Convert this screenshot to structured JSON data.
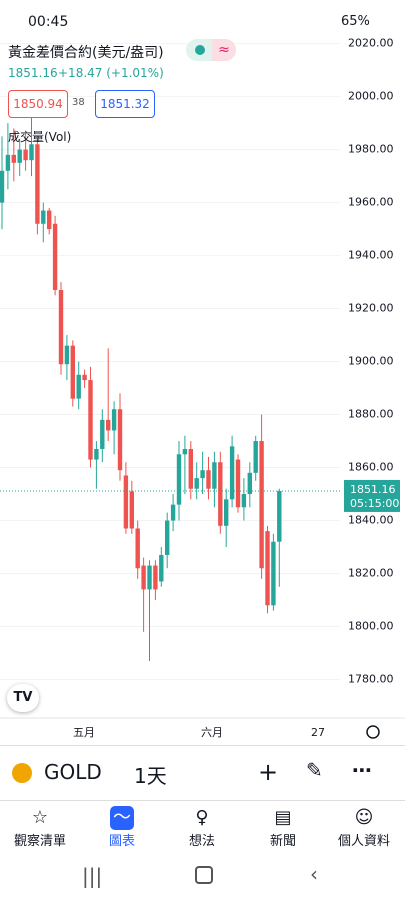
{
  "status": {
    "time": "00:45",
    "battery": "65%"
  },
  "header": {
    "title": "黃金差價合約(美元/盎司)",
    "last": "1851.16",
    "change": "+18.47 (+1.01%)",
    "bid": "1850.94",
    "spread": "38",
    "ask": "1851.32",
    "volume_label": "成交量(Vol)"
  },
  "chart_data": {
    "type": "candlestick",
    "up_color": "#26a69a",
    "down_color": "#ef5350",
    "open": [
      1960,
      1972,
      1978,
      1975,
      1980,
      1976,
      1982,
      1952,
      1957,
      1952,
      1927,
      1899,
      1906,
      1886,
      1895,
      1893,
      1863,
      1867,
      1878,
      1874,
      1882,
      1857,
      1851,
      1837,
      1823,
      1814,
      1823,
      1817,
      1827,
      1840,
      1846,
      1865,
      1867,
      1852,
      1856,
      1859,
      1852,
      1862,
      1838,
      1848,
      1863,
      1845,
      1850,
      1858,
      1870,
      1836,
      1808,
      1832
    ],
    "high": [
      1985,
      1990,
      1988,
      1984,
      1986,
      1992,
      1984,
      1960,
      1958,
      1955,
      1930,
      1910,
      1908,
      1900,
      1897,
      1898,
      1870,
      1882,
      1905,
      1885,
      1888,
      1862,
      1855,
      1840,
      1826,
      1825,
      1825,
      1830,
      1843,
      1850,
      1870,
      1872,
      1870,
      1862,
      1866,
      1864,
      1866,
      1866,
      1852,
      1872,
      1865,
      1856,
      1862,
      1872,
      1880,
      1838,
      1835,
      1852
    ],
    "low": [
      1950,
      1965,
      1968,
      1970,
      1972,
      1970,
      1948,
      1945,
      1948,
      1925,
      1895,
      1893,
      1883,
      1882,
      1890,
      1860,
      1852,
      1862,
      1870,
      1865,
      1855,
      1835,
      1835,
      1818,
      1798,
      1787,
      1810,
      1815,
      1822,
      1836,
      1840,
      1850,
      1848,
      1848,
      1850,
      1848,
      1845,
      1835,
      1830,
      1845,
      1843,
      1840,
      1845,
      1855,
      1818,
      1805,
      1806,
      1815
    ],
    "close": [
      1972,
      1978,
      1975,
      1980,
      1976,
      1982,
      1952,
      1957,
      1950,
      1927,
      1899,
      1906,
      1886,
      1895,
      1893,
      1863,
      1867,
      1878,
      1874,
      1882,
      1859,
      1837,
      1837,
      1822,
      1814,
      1823,
      1814,
      1827,
      1840,
      1846,
      1865,
      1867,
      1852,
      1856,
      1859,
      1852,
      1862,
      1838,
      1848,
      1868,
      1845,
      1850,
      1858,
      1870,
      1822,
      1808,
      1832,
      1851.16
    ],
    "ylim": [
      1770,
      2024
    ],
    "yticks": [
      {
        "value": 1780,
        "label": "1780.00"
      },
      {
        "value": 1800,
        "label": "1800.00"
      },
      {
        "value": 1820,
        "label": "1820.00"
      },
      {
        "value": 1840,
        "label": "1840.00"
      },
      {
        "value": 1860,
        "label": "1860.00"
      },
      {
        "value": 1880,
        "label": "1880.00"
      },
      {
        "value": 1900,
        "label": "1900.00"
      },
      {
        "value": 1920,
        "label": "1920.00"
      },
      {
        "value": 1940,
        "label": "1940.00"
      },
      {
        "value": 1960,
        "label": "1960.00"
      },
      {
        "value": 1980,
        "label": "1980.00"
      },
      {
        "value": 2000,
        "label": "2000.00"
      },
      {
        "value": 2020,
        "label": "2020.00"
      }
    ],
    "x_labels": [
      "五月",
      "六月",
      "27"
    ],
    "last_price": {
      "value": 1851.16,
      "label": "1851.16",
      "countdown": "05:15:00"
    }
  },
  "toolbar": {
    "symbol": "GOLD",
    "interval": "1天"
  },
  "nav": [
    "觀察清單",
    "圖表",
    "想法",
    "新聞",
    "個人資料"
  ]
}
